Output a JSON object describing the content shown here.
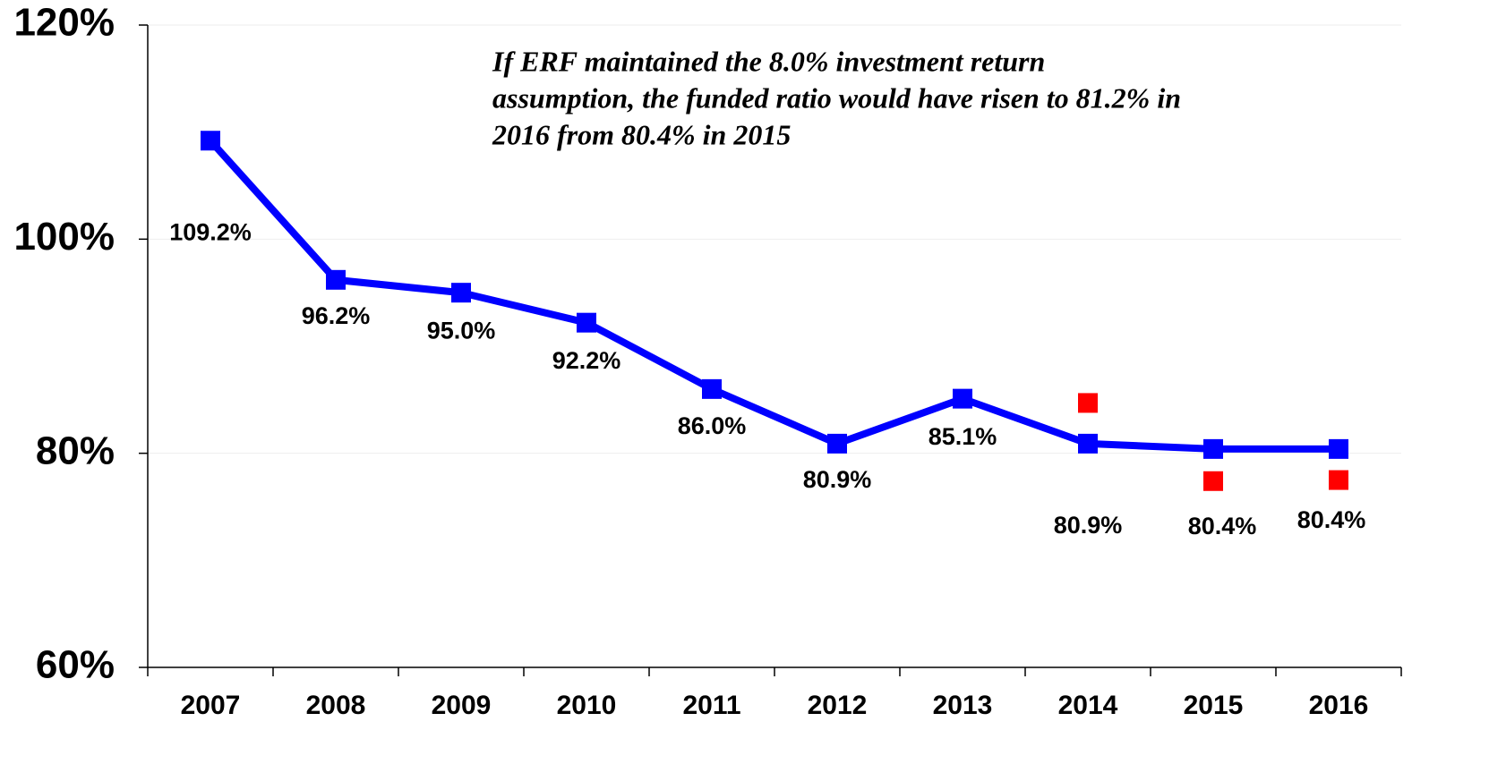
{
  "chart_data": {
    "type": "line",
    "annotation": [
      "If ERF maintained the 8.0% investment return",
      "assumption, the funded ratio would have risen to 81.2% in",
      "2016 from 80.4% in 2015"
    ],
    "categories": [
      "2007",
      "2008",
      "2009",
      "2010",
      "2011",
      "2012",
      "2013",
      "2014",
      "2015",
      "2016"
    ],
    "series": [
      {
        "color": "#0000ff",
        "line": true,
        "values": [
          109.2,
          96.2,
          95.0,
          92.2,
          86.0,
          80.9,
          85.1,
          80.9,
          80.4,
          80.4
        ],
        "value_labels": [
          "109.2%",
          "96.2%",
          "95.0%",
          "92.2%",
          "86.0%",
          "80.9%",
          "85.1%",
          "80.9%",
          "80.4%",
          "80.4%"
        ]
      },
      {
        "color": "#ff0000",
        "line": false,
        "values": [
          null,
          null,
          null,
          null,
          null,
          null,
          null,
          84.7,
          77.4,
          77.5
        ]
      }
    ],
    "ylim": [
      60,
      120
    ],
    "yticks": [
      {
        "value": 60,
        "label": "60%"
      },
      {
        "value": 80,
        "label": "80%"
      },
      {
        "value": 100,
        "label": "100%"
      },
      {
        "value": 120,
        "label": "120%"
      }
    ],
    "grid": true
  }
}
